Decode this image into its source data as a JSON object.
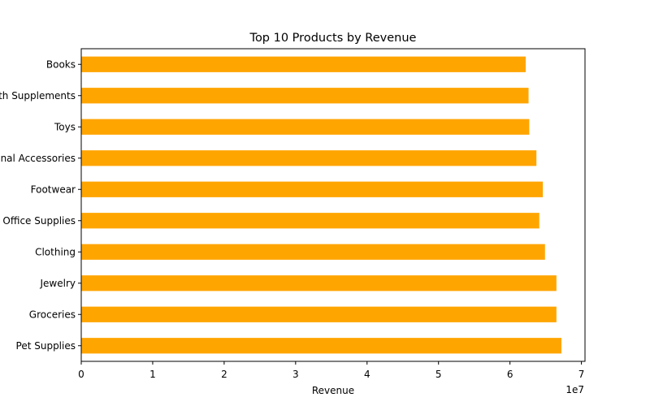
{
  "chart_data": {
    "type": "bar",
    "orientation": "horizontal",
    "title": "Top 10 Products by Revenue",
    "xlabel": "Revenue",
    "ylabel": "",
    "offset_text": "1e7",
    "categories": [
      "Pet Supplies",
      "Groceries",
      "Jewelry",
      "Clothing",
      "Office Supplies",
      "Footwear",
      "Personal Accessories",
      "Toys",
      "Health Supplements",
      "Books"
    ],
    "values": [
      67200000,
      66500000,
      66500000,
      64900000,
      64100000,
      64600000,
      63700000,
      62700000,
      62600000,
      62200000
    ],
    "xlim": [
      0,
      70500000
    ],
    "xticks": [
      0,
      10000000,
      20000000,
      30000000,
      40000000,
      50000000,
      60000000,
      70000000
    ],
    "xtick_labels": [
      "0",
      "1",
      "2",
      "3",
      "4",
      "5",
      "6",
      "7"
    ],
    "bar_color": "#ffa500",
    "grid": false,
    "legend": "none"
  }
}
